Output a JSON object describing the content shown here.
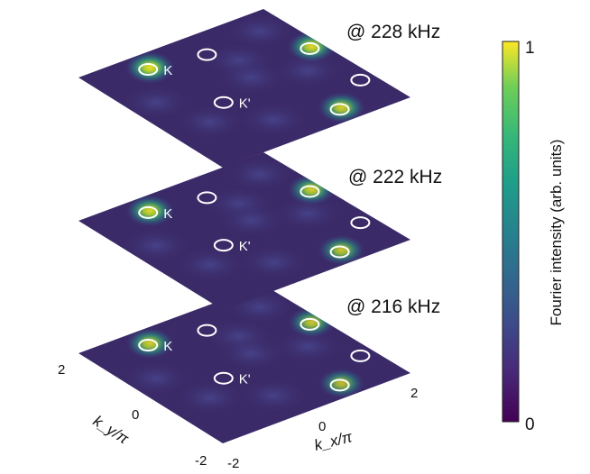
{
  "chart_data": {
    "type": "heatmap",
    "panels": [
      {
        "label": "@ 228 kHz",
        "peaks": [
          {
            "name": "K",
            "kx": -0.9,
            "ky": 1.5,
            "intensity": 0.95
          },
          {
            "name": "K",
            "kx": 1.7,
            "ky": 0.4,
            "intensity": 0.9
          },
          {
            "name": "K",
            "kx": 0.8,
            "ky": -1.6,
            "intensity": 0.85
          }
        ],
        "markers": [
          {
            "name": "K",
            "kx": -0.9,
            "ky": 1.5,
            "filled": true
          },
          {
            "name": "",
            "kx": 0.2,
            "ky": 1.3,
            "filled": false
          },
          {
            "name": "",
            "kx": 1.7,
            "ky": 0.4,
            "filled": true
          },
          {
            "name": "K'",
            "kx": -0.6,
            "ky": -0.2,
            "filled": false
          },
          {
            "name": "",
            "kx": 1.7,
            "ky": -1.0,
            "filled": false
          },
          {
            "name": "",
            "kx": 0.8,
            "ky": -1.6,
            "filled": true
          }
        ]
      },
      {
        "label": "@ 222 kHz",
        "peaks": [
          {
            "name": "K",
            "kx": -0.9,
            "ky": 1.5,
            "intensity": 0.9
          },
          {
            "name": "K",
            "kx": 1.7,
            "ky": 0.4,
            "intensity": 0.85
          },
          {
            "name": "K",
            "kx": 0.8,
            "ky": -1.6,
            "intensity": 0.8
          }
        ],
        "markers": [
          {
            "name": "K",
            "kx": -0.9,
            "ky": 1.5,
            "filled": true
          },
          {
            "name": "",
            "kx": 0.2,
            "ky": 1.3,
            "filled": false
          },
          {
            "name": "",
            "kx": 1.7,
            "ky": 0.4,
            "filled": true
          },
          {
            "name": "K'",
            "kx": -0.6,
            "ky": -0.2,
            "filled": false
          },
          {
            "name": "",
            "kx": 1.7,
            "ky": -1.0,
            "filled": false
          },
          {
            "name": "",
            "kx": 0.8,
            "ky": -1.6,
            "filled": true
          }
        ]
      },
      {
        "label": "@ 216 kHz",
        "peaks": [
          {
            "name": "K",
            "kx": -0.9,
            "ky": 1.5,
            "intensity": 0.85
          },
          {
            "name": "K",
            "kx": 1.7,
            "ky": 0.4,
            "intensity": 0.8
          },
          {
            "name": "K",
            "kx": 0.8,
            "ky": -1.6,
            "intensity": 0.75
          }
        ],
        "markers": [
          {
            "name": "K",
            "kx": -0.9,
            "ky": 1.5,
            "filled": true
          },
          {
            "name": "",
            "kx": 0.2,
            "ky": 1.3,
            "filled": false
          },
          {
            "name": "",
            "kx": 1.7,
            "ky": 0.4,
            "filled": true
          },
          {
            "name": "K'",
            "kx": -0.6,
            "ky": -0.2,
            "filled": false
          },
          {
            "name": "",
            "kx": 1.7,
            "ky": -1.0,
            "filled": false
          },
          {
            "name": "",
            "kx": 0.8,
            "ky": -1.6,
            "filled": true
          }
        ]
      }
    ],
    "xlabel": "k_x/π",
    "ylabel": "k_y/π",
    "xlim": [
      -2,
      2
    ],
    "ylim": [
      -2,
      2
    ],
    "xticks": [
      "-2",
      "0",
      "2"
    ],
    "yticks": [
      "-2",
      "0",
      "2"
    ],
    "colorbar": {
      "label": "Fourier intensity (arb. units)",
      "min": 0,
      "max": 1,
      "ticks": [
        "0",
        "1"
      ],
      "colormap": "viridis"
    }
  },
  "colors": {
    "background": "#3b2a68",
    "ring": "#ffffff"
  }
}
